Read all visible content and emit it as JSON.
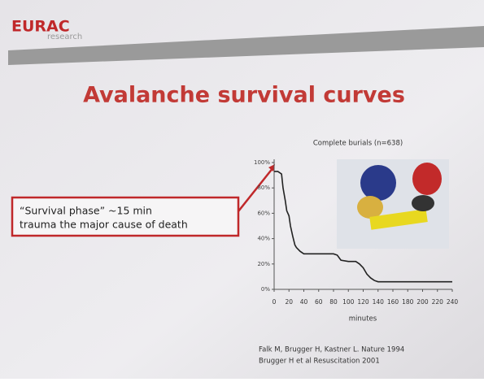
{
  "slide": {
    "logo": "EURAC",
    "logo_sub": "research",
    "title": "Avalanche survival curves",
    "callout": [
      "“Survival phase” ~15 min",
      "trauma the major cause of death"
    ],
    "references": [
      "Falk M, Brugger H, Kastner L. Nature 1994",
      "Brugger H et al Resuscitation 2001"
    ]
  },
  "chart_data": {
    "type": "line",
    "title": "Complete burials (n=638)",
    "x_label": "minutes",
    "color": "#222222",
    "x": [
      0,
      5,
      10,
      12,
      15,
      17,
      20,
      22,
      25,
      28,
      30,
      35,
      40,
      50,
      60,
      70,
      80,
      85,
      90,
      100,
      110,
      115,
      120,
      125,
      130,
      135,
      140,
      160,
      200,
      240
    ],
    "values": [
      93,
      93,
      91,
      80,
      70,
      62,
      58,
      50,
      42,
      35,
      33,
      30,
      28,
      28,
      28,
      28,
      28,
      27,
      23,
      22,
      22,
      20,
      17,
      12,
      9,
      7,
      6,
      6,
      6,
      6
    ],
    "xlim": [
      0,
      240
    ],
    "xticks": [
      0,
      20,
      40,
      60,
      80,
      100,
      120,
      140,
      160,
      180,
      200,
      220,
      240
    ],
    "ylim": [
      0,
      100
    ],
    "yticks": [
      {
        "value": 0,
        "label": "0%"
      },
      {
        "value": 20,
        "label": "20%"
      },
      {
        "value": 40,
        "label": "40%"
      },
      {
        "value": 60,
        "label": "60%"
      },
      {
        "value": 80,
        "label": "80%"
      },
      {
        "value": 100,
        "label": "100%"
      }
    ]
  }
}
